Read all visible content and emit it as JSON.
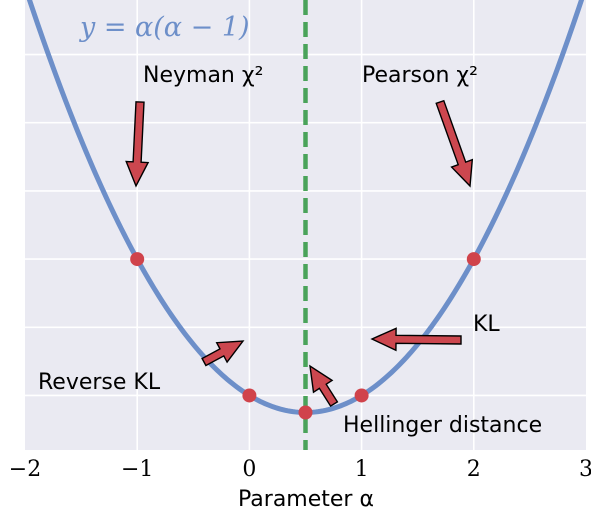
{
  "chart_data": {
    "type": "line",
    "xlabel": "Parameter α",
    "ylabel": "",
    "xlim": [
      -2,
      3
    ],
    "ylim": [
      -0.8,
      5.8
    ],
    "xticks": [
      -2,
      -1,
      0,
      1,
      2,
      3
    ],
    "xtick_labels": [
      "−2",
      "−1",
      "0",
      "1",
      "2",
      "3"
    ],
    "grid": true,
    "series": [
      {
        "name": "y = α(α − 1)",
        "function": "alpha*(alpha-1)",
        "x_range": [
          -2.2,
          3.2
        ],
        "color": "#6d8fc9"
      }
    ],
    "vline": {
      "x": 0.5,
      "color": "#4aa35a",
      "style": "dashed"
    },
    "points": [
      {
        "label": "Neyman χ²",
        "x": -1,
        "y": 2
      },
      {
        "label": "Reverse KL",
        "x": 0,
        "y": 0
      },
      {
        "label": "Hellinger distance",
        "x": 0.5,
        "y": -0.25
      },
      {
        "label": "KL",
        "x": 1,
        "y": 0
      },
      {
        "label": "Pearson χ²",
        "x": 2,
        "y": 2
      }
    ],
    "point_color": "#d0434b",
    "arrow_color": "#cc474f"
  }
}
